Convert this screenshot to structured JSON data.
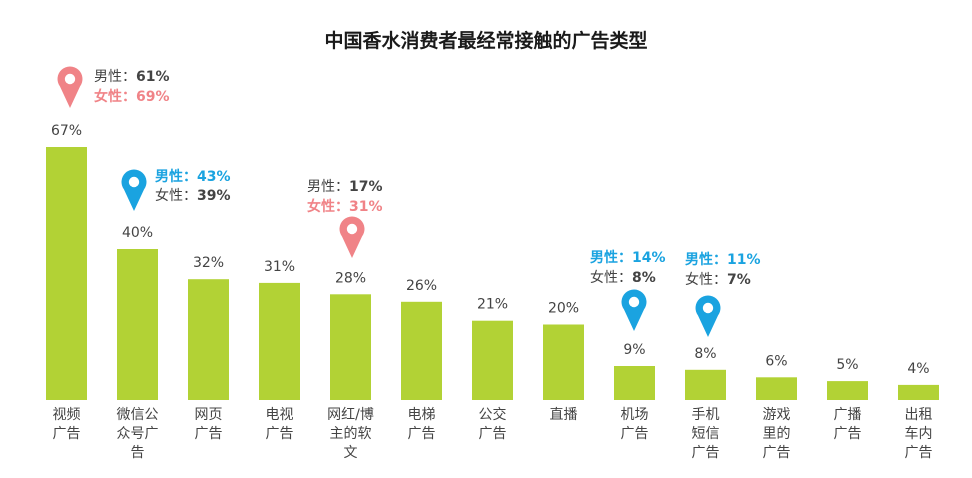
{
  "colors": {
    "bar": "#b2d235",
    "male": "#1aa3e0",
    "female": "#f08387",
    "text": "#444444"
  },
  "chart_data": {
    "type": "bar",
    "title": "中国香水消费者最经常接触的广告类型",
    "xlabel": "",
    "ylabel": "",
    "ylim": [
      0,
      67
    ],
    "grid": false,
    "categories": [
      [
        "视频",
        "广告"
      ],
      [
        "微信公",
        "众号广",
        "告"
      ],
      [
        "网页",
        "广告"
      ],
      [
        "电视",
        "广告"
      ],
      [
        "网红/博",
        "主的软",
        "文"
      ],
      [
        "电梯",
        "广告"
      ],
      [
        "公交",
        "广告"
      ],
      [
        "直播"
      ],
      [
        "机场",
        "广告"
      ],
      [
        "手机",
        "短信",
        "广告"
      ],
      [
        "游戏",
        "里的",
        "广告"
      ],
      [
        "广播",
        "广告"
      ],
      [
        "出租",
        "车内",
        "广告"
      ]
    ],
    "values": [
      67,
      40,
      32,
      31,
      28,
      26,
      21,
      20,
      9,
      8,
      6,
      5,
      4
    ],
    "value_labels": [
      "67%",
      "40%",
      "32%",
      "31%",
      "28%",
      "26%",
      "21%",
      "20%",
      "9%",
      "8%",
      "6%",
      "5%",
      "4%"
    ],
    "annotations": [
      {
        "index": 0,
        "highlight": "female",
        "pin": true,
        "male": {
          "label": "男性：",
          "value": "61%"
        },
        "female": {
          "label": "女性：",
          "value": "69%"
        }
      },
      {
        "index": 1,
        "highlight": "male",
        "pin": true,
        "male": {
          "label": "男性：",
          "value": "43%"
        },
        "female": {
          "label": "女性：",
          "value": "39%"
        }
      },
      {
        "index": 4,
        "highlight": "female",
        "pin": true,
        "male": {
          "label": "男性：",
          "value": "17%"
        },
        "female": {
          "label": "女性：",
          "value": "31%"
        }
      },
      {
        "index": 8,
        "highlight": "male",
        "pin": true,
        "male": {
          "label": "男性：",
          "value": "14%"
        },
        "female": {
          "label": "女性：",
          "value": "8%"
        }
      },
      {
        "index": 9,
        "highlight": "male",
        "pin": true,
        "male": {
          "label": "男性：",
          "value": "11%"
        },
        "female": {
          "label": "女性：",
          "value": "7%"
        }
      }
    ]
  }
}
